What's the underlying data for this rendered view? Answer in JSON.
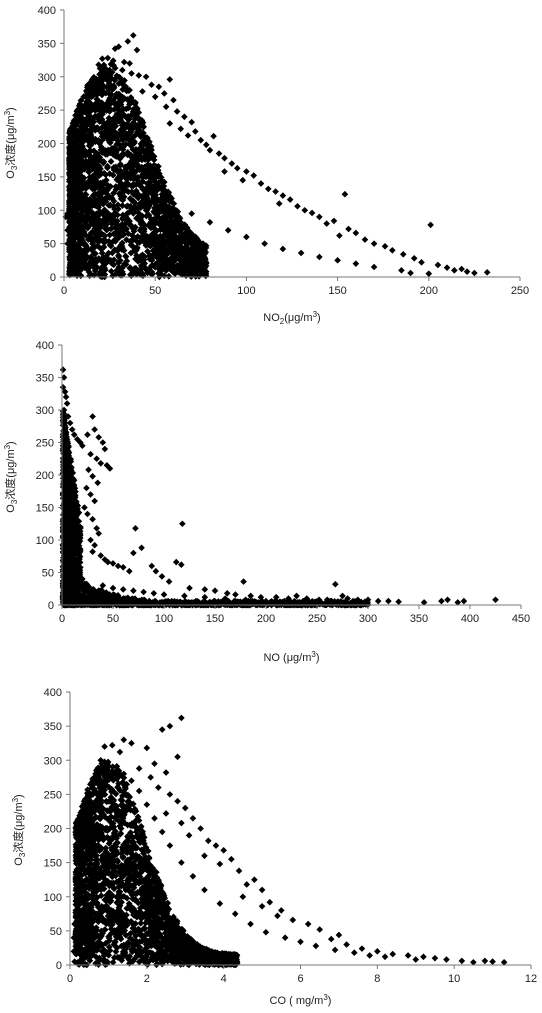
{
  "chart_data": [
    {
      "type": "scatter",
      "ylabel": {
        "base": "O",
        "sub": "3",
        "rest": "浓度(μg/m",
        "sup": "3",
        "close": ")"
      },
      "xlabel": {
        "base": "NO",
        "sub": "2",
        "rest": "(μg/m",
        "sup": "3",
        "close": ")"
      },
      "xlim": [
        0,
        250
      ],
      "ylim": [
        0,
        400
      ],
      "xticks": [
        "0",
        "50",
        "100",
        "150",
        "200",
        "250"
      ],
      "yticks": [
        "0",
        "50",
        "100",
        "150",
        "200",
        "250",
        "300",
        "350",
        "400"
      ],
      "grid": false,
      "marker": "diamond",
      "marker_color": "#000000",
      "dense_region": "most points lie at NO2 5–60 with O3 0–280; upper envelope decays toward high NO2",
      "points": [
        [
          38,
          362
        ],
        [
          35,
          353
        ],
        [
          30,
          345
        ],
        [
          28,
          342
        ],
        [
          40,
          340
        ],
        [
          24,
          328
        ],
        [
          21,
          327
        ],
        [
          27,
          324
        ],
        [
          33,
          322
        ],
        [
          36,
          320
        ],
        [
          19,
          318
        ],
        [
          32,
          310
        ],
        [
          37,
          305
        ],
        [
          41,
          302
        ],
        [
          58,
          296
        ],
        [
          45,
          300
        ],
        [
          48,
          288
        ],
        [
          52,
          285
        ],
        [
          43,
          278
        ],
        [
          55,
          275
        ],
        [
          50,
          270
        ],
        [
          60,
          265
        ],
        [
          56,
          255
        ],
        [
          62,
          248
        ],
        [
          66,
          240
        ],
        [
          70,
          232
        ],
        [
          58,
          230
        ],
        [
          64,
          222
        ],
        [
          72,
          218
        ],
        [
          82,
          211
        ],
        [
          68,
          212
        ],
        [
          75,
          205
        ],
        [
          78,
          198
        ],
        [
          80,
          190
        ],
        [
          85,
          185
        ],
        [
          88,
          178
        ],
        [
          92,
          170
        ],
        [
          95,
          163
        ],
        [
          88,
          158
        ],
        [
          100,
          158
        ],
        [
          104,
          152
        ],
        [
          98,
          145
        ],
        [
          108,
          140
        ],
        [
          112,
          132
        ],
        [
          116,
          128
        ],
        [
          154,
          124
        ],
        [
          120,
          122
        ],
        [
          124,
          116
        ],
        [
          118,
          110
        ],
        [
          128,
          106
        ],
        [
          132,
          100
        ],
        [
          136,
          96
        ],
        [
          140,
          90
        ],
        [
          148,
          84
        ],
        [
          144,
          80
        ],
        [
          156,
          72
        ],
        [
          160,
          66
        ],
        [
          151,
          62
        ],
        [
          165,
          56
        ],
        [
          170,
          50
        ],
        [
          176,
          46
        ],
        [
          180,
          40
        ],
        [
          186,
          34
        ],
        [
          192,
          28
        ],
        [
          196,
          22
        ],
        [
          201,
          78
        ],
        [
          205,
          18
        ],
        [
          210,
          14
        ],
        [
          214,
          10
        ],
        [
          218,
          12
        ],
        [
          221,
          8
        ],
        [
          225,
          6
        ],
        [
          232,
          7
        ],
        [
          200,
          5
        ],
        [
          190,
          6
        ],
        [
          185,
          10
        ],
        [
          170,
          15
        ],
        [
          160,
          20
        ],
        [
          150,
          25
        ],
        [
          140,
          30
        ],
        [
          130,
          36
        ],
        [
          120,
          42
        ],
        [
          110,
          50
        ],
        [
          100,
          60
        ],
        [
          90,
          70
        ],
        [
          80,
          82
        ],
        [
          70,
          95
        ],
        [
          60,
          110
        ],
        [
          50,
          130
        ],
        [
          45,
          150
        ],
        [
          42,
          180
        ],
        [
          38,
          210
        ],
        [
          34,
          240
        ],
        [
          30,
          262
        ],
        [
          26,
          285
        ],
        [
          22,
          298
        ],
        [
          25,
          310
        ],
        [
          18,
          290
        ],
        [
          15,
          270
        ],
        [
          14,
          250
        ],
        [
          12,
          230
        ],
        [
          10,
          210
        ],
        [
          8,
          190
        ],
        [
          7,
          170
        ],
        [
          6,
          150
        ],
        [
          5,
          130
        ],
        [
          4,
          110
        ],
        [
          3,
          100
        ],
        [
          2,
          95
        ],
        [
          1,
          90
        ],
        [
          2,
          70
        ],
        [
          2,
          50
        ],
        [
          3,
          30
        ],
        [
          4,
          15
        ],
        [
          5,
          5
        ],
        [
          9,
          3
        ],
        [
          14,
          2
        ],
        [
          20,
          1
        ]
      ]
    },
    {
      "type": "scatter",
      "ylabel": {
        "base": "O",
        "sub": "3",
        "rest": "浓度(μg/m",
        "sup": "3",
        "close": ")"
      },
      "xlabel": {
        "base": "NO (μg/m",
        "sub": "",
        "rest": "",
        "sup": "3",
        "close": ")"
      },
      "xlim": [
        0,
        450
      ],
      "ylim": [
        0,
        400
      ],
      "xticks": [
        "0",
        "50",
        "100",
        "150",
        "200",
        "250",
        "300",
        "350",
        "400",
        "450"
      ],
      "yticks": [
        "0",
        "50",
        "100",
        "150",
        "200",
        "250",
        "300",
        "350",
        "400"
      ],
      "grid": false,
      "marker": "diamond",
      "marker_color": "#000000",
      "dense_region": "most points lie at NO 0–10 with O3 0–330 and along O3 < 20 for NO up to 330",
      "points": [
        [
          1,
          362
        ],
        [
          2,
          350
        ],
        [
          1,
          335
        ],
        [
          3,
          328
        ],
        [
          4,
          320
        ],
        [
          5,
          310
        ],
        [
          2,
          300
        ],
        [
          6,
          290
        ],
        [
          8,
          280
        ],
        [
          10,
          270
        ],
        [
          12,
          262
        ],
        [
          15,
          255
        ],
        [
          18,
          250
        ],
        [
          20,
          245
        ],
        [
          25,
          262
        ],
        [
          30,
          290
        ],
        [
          32,
          270
        ],
        [
          36,
          258
        ],
        [
          40,
          250
        ],
        [
          42,
          240
        ],
        [
          28,
          232
        ],
        [
          34,
          225
        ],
        [
          38,
          218
        ],
        [
          44,
          215
        ],
        [
          47,
          210
        ],
        [
          26,
          208
        ],
        [
          30,
          198
        ],
        [
          35,
          188
        ],
        [
          24,
          180
        ],
        [
          28,
          170
        ],
        [
          32,
          160
        ],
        [
          22,
          150
        ],
        [
          25,
          140
        ],
        [
          30,
          132
        ],
        [
          34,
          118
        ],
        [
          36,
          110
        ],
        [
          28,
          100
        ],
        [
          32,
          92
        ],
        [
          30,
          82
        ],
        [
          38,
          76
        ],
        [
          42,
          70
        ],
        [
          45,
          66
        ],
        [
          50,
          64
        ],
        [
          55,
          60
        ],
        [
          60,
          58
        ],
        [
          66,
          52
        ],
        [
          70,
          80
        ],
        [
          72,
          118
        ],
        [
          78,
          88
        ],
        [
          88,
          60
        ],
        [
          92,
          52
        ],
        [
          98,
          44
        ],
        [
          105,
          36
        ],
        [
          112,
          66
        ],
        [
          117,
          62
        ],
        [
          118,
          125
        ],
        [
          125,
          26
        ],
        [
          140,
          24
        ],
        [
          150,
          22
        ],
        [
          162,
          18
        ],
        [
          170,
          16
        ],
        [
          178,
          36
        ],
        [
          185,
          14
        ],
        [
          195,
          12
        ],
        [
          210,
          12
        ],
        [
          222,
          10
        ],
        [
          230,
          14
        ],
        [
          240,
          10
        ],
        [
          252,
          8
        ],
        [
          260,
          8
        ],
        [
          268,
          32
        ],
        [
          275,
          14
        ],
        [
          280,
          10
        ],
        [
          290,
          8
        ],
        [
          300,
          8
        ],
        [
          310,
          6
        ],
        [
          320,
          6
        ],
        [
          330,
          5
        ],
        [
          355,
          4
        ],
        [
          372,
          6
        ],
        [
          378,
          8
        ],
        [
          388,
          4
        ],
        [
          394,
          6
        ],
        [
          425,
          8
        ],
        [
          200,
          6
        ],
        [
          180,
          8
        ],
        [
          160,
          10
        ],
        [
          140,
          12
        ],
        [
          120,
          14
        ],
        [
          100,
          16
        ],
        [
          90,
          18
        ],
        [
          80,
          20
        ],
        [
          70,
          22
        ],
        [
          60,
          24
        ],
        [
          50,
          26
        ],
        [
          40,
          30
        ],
        [
          20,
          40
        ],
        [
          15,
          60
        ],
        [
          12,
          80
        ],
        [
          10,
          100
        ],
        [
          8,
          120
        ],
        [
          6,
          140
        ],
        [
          4,
          160
        ],
        [
          3,
          180
        ],
        [
          2,
          200
        ],
        [
          1,
          220
        ],
        [
          1,
          240
        ],
        [
          2,
          5
        ],
        [
          4,
          2
        ],
        [
          6,
          1
        ]
      ]
    },
    {
      "type": "scatter",
      "ylabel": {
        "base": "O",
        "sub": "3",
        "rest": "浓度(μg/m",
        "sup": "3",
        "close": ")"
      },
      "xlabel": {
        "base": "CO ( mg/m",
        "sub": "",
        "rest": "",
        "sup": "3",
        "close": ")"
      },
      "xlim": [
        0,
        12
      ],
      "ylim": [
        0,
        400
      ],
      "xticks": [
        "0",
        "2",
        "4",
        "6",
        "8",
        "10",
        "12"
      ],
      "yticks": [
        "0",
        "50",
        "100",
        "150",
        "200",
        "250",
        "300",
        "350",
        "400"
      ],
      "grid": false,
      "marker": "diamond",
      "marker_color": "#000000",
      "dense_region": "most points lie at CO 0.3–2.2 with O3 0–280; envelope decays toward CO 11.5",
      "points": [
        [
          2.9,
          362
        ],
        [
          2.6,
          350
        ],
        [
          2.4,
          345
        ],
        [
          1.4,
          330
        ],
        [
          1.1,
          322
        ],
        [
          0.9,
          320
        ],
        [
          1.6,
          325
        ],
        [
          2.0,
          318
        ],
        [
          1.3,
          312
        ],
        [
          2.8,
          305
        ],
        [
          0.8,
          300
        ],
        [
          2.2,
          295
        ],
        [
          1.8,
          288
        ],
        [
          2.5,
          282
        ],
        [
          0.7,
          278
        ],
        [
          2.1,
          275
        ],
        [
          2.3,
          260
        ],
        [
          2.6,
          250
        ],
        [
          2.8,
          240
        ],
        [
          3.0,
          230
        ],
        [
          2.5,
          222
        ],
        [
          3.2,
          215
        ],
        [
          2.9,
          208
        ],
        [
          3.4,
          200
        ],
        [
          3.1,
          190
        ],
        [
          3.6,
          182
        ],
        [
          3.8,
          175
        ],
        [
          4.0,
          168
        ],
        [
          3.5,
          160
        ],
        [
          4.2,
          155
        ],
        [
          3.9,
          148
        ],
        [
          4.4,
          138
        ],
        [
          4.8,
          125
        ],
        [
          4.6,
          118
        ],
        [
          5.0,
          110
        ],
        [
          4.5,
          100
        ],
        [
          5.2,
          92
        ],
        [
          5.0,
          86
        ],
        [
          5.5,
          80
        ],
        [
          5.4,
          72
        ],
        [
          5.8,
          66
        ],
        [
          6.2,
          60
        ],
        [
          6.5,
          52
        ],
        [
          7.0,
          44
        ],
        [
          6.8,
          38
        ],
        [
          7.2,
          30
        ],
        [
          7.6,
          24
        ],
        [
          8.0,
          20
        ],
        [
          8.4,
          16
        ],
        [
          8.8,
          14
        ],
        [
          9.2,
          12
        ],
        [
          9.5,
          10
        ],
        [
          9.8,
          8
        ],
        [
          10.2,
          6
        ],
        [
          10.5,
          4
        ],
        [
          11.0,
          5
        ],
        [
          11.3,
          4
        ],
        [
          10.8,
          6
        ],
        [
          9.0,
          8
        ],
        [
          8.2,
          12
        ],
        [
          7.8,
          14
        ],
        [
          7.4,
          18
        ],
        [
          6.9,
          22
        ],
        [
          6.4,
          28
        ],
        [
          6.0,
          34
        ],
        [
          5.6,
          40
        ],
        [
          5.1,
          48
        ],
        [
          4.7,
          60
        ],
        [
          4.3,
          75
        ],
        [
          3.9,
          90
        ],
        [
          3.5,
          110
        ],
        [
          3.2,
          130
        ],
        [
          2.9,
          150
        ],
        [
          2.6,
          175
        ],
        [
          2.4,
          195
        ],
        [
          2.2,
          215
        ],
        [
          2.0,
          235
        ],
        [
          1.8,
          255
        ],
        [
          1.6,
          270
        ],
        [
          1.4,
          280
        ],
        [
          1.2,
          285
        ],
        [
          1.0,
          290
        ],
        [
          0.8,
          270
        ],
        [
          0.6,
          250
        ],
        [
          0.5,
          230
        ],
        [
          0.4,
          200
        ],
        [
          0.35,
          180
        ],
        [
          0.3,
          160
        ],
        [
          0.25,
          140
        ],
        [
          0.2,
          120
        ],
        [
          0.18,
          100
        ],
        [
          0.15,
          80
        ],
        [
          0.12,
          60
        ],
        [
          0.1,
          40
        ],
        [
          0.1,
          20
        ],
        [
          0.12,
          5
        ],
        [
          0.2,
          2
        ],
        [
          0.4,
          1
        ]
      ]
    }
  ]
}
